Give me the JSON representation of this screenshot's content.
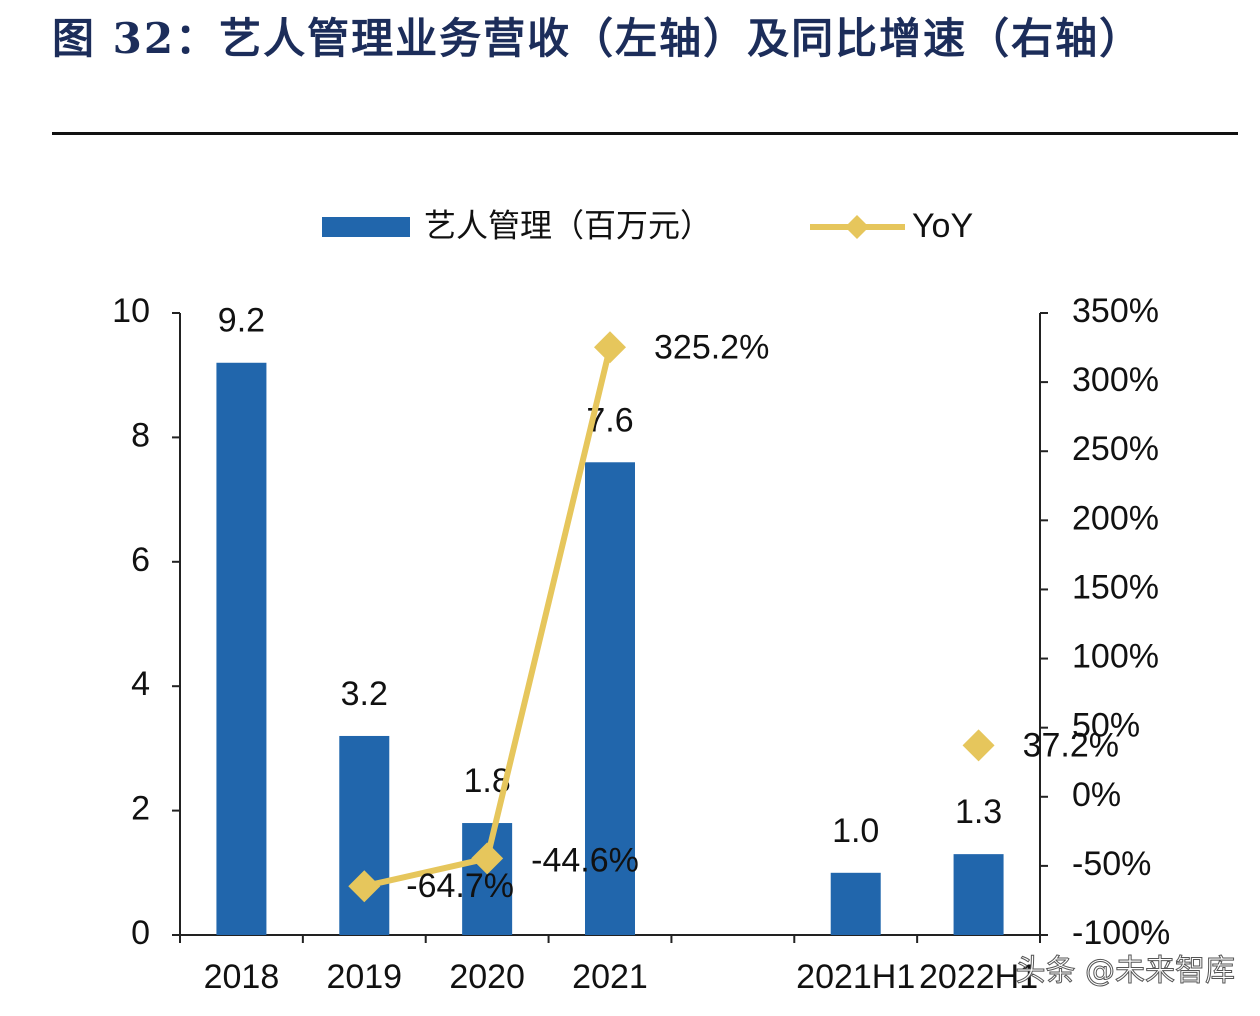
{
  "chart_data": {
    "type": "bar-line",
    "title": "图 32：艺人管理业务营收（左轴）及同比增速（右轴）",
    "categories": [
      "2018",
      "2019",
      "2020",
      "2021",
      null,
      "2021H1",
      "2022H1"
    ],
    "series": [
      {
        "name": "艺人管理（百万元）",
        "type": "bar",
        "color": "#2166ac",
        "values": [
          9.2,
          3.2,
          1.8,
          7.6,
          null,
          1.0,
          1.3
        ],
        "value_labels": [
          "9.2",
          "3.2",
          "1.8",
          "7.6",
          null,
          "1.0",
          "1.3"
        ]
      },
      {
        "name": "YoY",
        "type": "line",
        "axis": "y2",
        "color": "#e6c65c",
        "values": [
          null,
          -64.7,
          -44.6,
          325.2,
          null,
          null,
          37.2
        ],
        "value_labels": [
          null,
          "-64.7%",
          "-44.6%",
          "325.2%",
          null,
          null,
          "37.2%"
        ]
      }
    ],
    "ylim": [
      0,
      10
    ],
    "yticks": [
      0,
      2,
      4,
      6,
      8,
      10
    ],
    "y2lim": [
      -100,
      350
    ],
    "y2ticks": [
      {
        "value": -100,
        "label": "-100%"
      },
      {
        "value": -50,
        "label": "-50%"
      },
      {
        "value": 0,
        "label": "0%"
      },
      {
        "value": 50,
        "label": "50%"
      },
      {
        "value": 100,
        "label": "100%"
      },
      {
        "value": 150,
        "label": "150%"
      },
      {
        "value": 200,
        "label": "200%"
      },
      {
        "value": 250,
        "label": "250%"
      },
      {
        "value": 300,
        "label": "300%"
      },
      {
        "value": 350,
        "label": "350%"
      }
    ],
    "legend": "top",
    "watermark": "头条 @未来智库"
  }
}
